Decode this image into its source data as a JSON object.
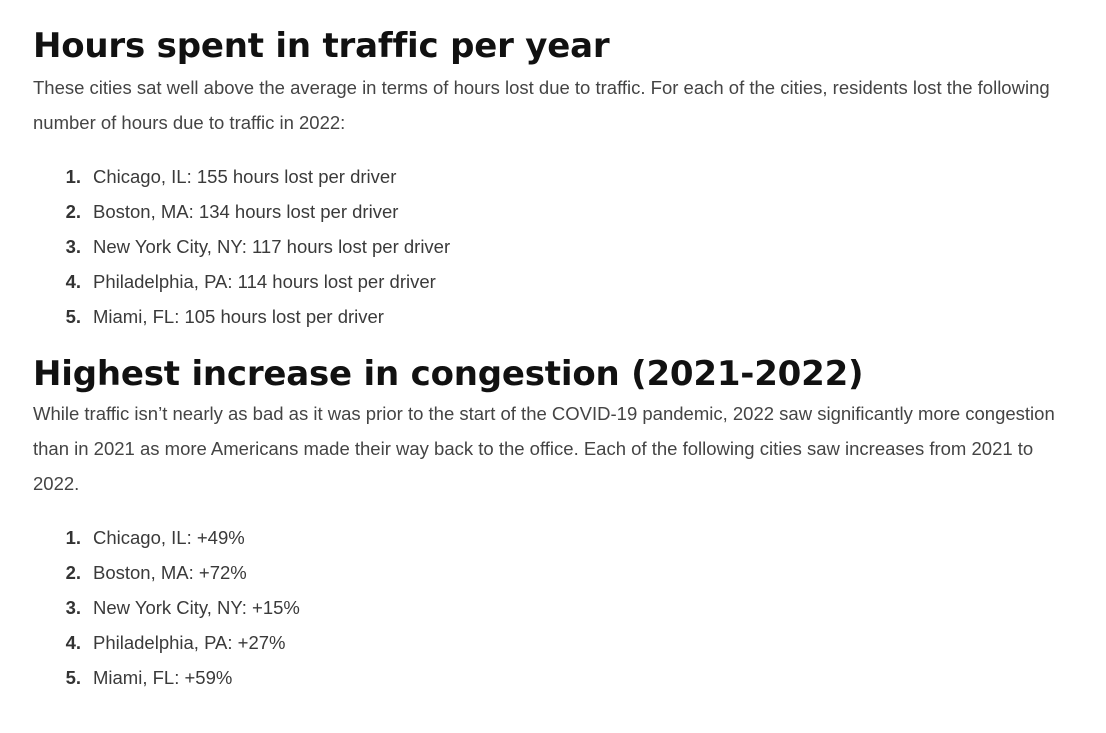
{
  "sections": [
    {
      "title": "Hours spent in traffic per year",
      "paragraph": "These cities sat well above the average in terms of hours lost due to traffic. For each of the cities, residents lost the following number of hours due to traffic in 2022:",
      "items": [
        {
          "num": "1.",
          "text": "Chicago, IL: 155 hours lost per driver"
        },
        {
          "num": "2.",
          "text": "Boston, MA: 134 hours lost per driver"
        },
        {
          "num": "3.",
          "text": "New York City, NY: 117 hours lost per driver"
        },
        {
          "num": "4.",
          "text": "Philadelphia, PA: 114 hours lost per driver"
        },
        {
          "num": "5.",
          "text": "Miami, FL: 105 hours lost per driver"
        }
      ]
    },
    {
      "title": "Highest increase in congestion (2021-2022)",
      "paragraph": "While traffic isn’t nearly as bad as it was prior to the start of the COVID-19 pandemic, 2022 saw significantly more congestion than in 2021 as more Americans made their way back to the office. Each of the following cities saw increases from 2021 to 2022.",
      "items": [
        {
          "num": "1.",
          "text": "Chicago, IL: +49%"
        },
        {
          "num": "2.",
          "text": "Boston, MA: +72%"
        },
        {
          "num": "3.",
          "text": "New York City, NY: +15%"
        },
        {
          "num": "4.",
          "text": "Philadelphia, PA: +27%"
        },
        {
          "num": "5.",
          "text": "Miami, FL: +59%"
        }
      ]
    }
  ]
}
